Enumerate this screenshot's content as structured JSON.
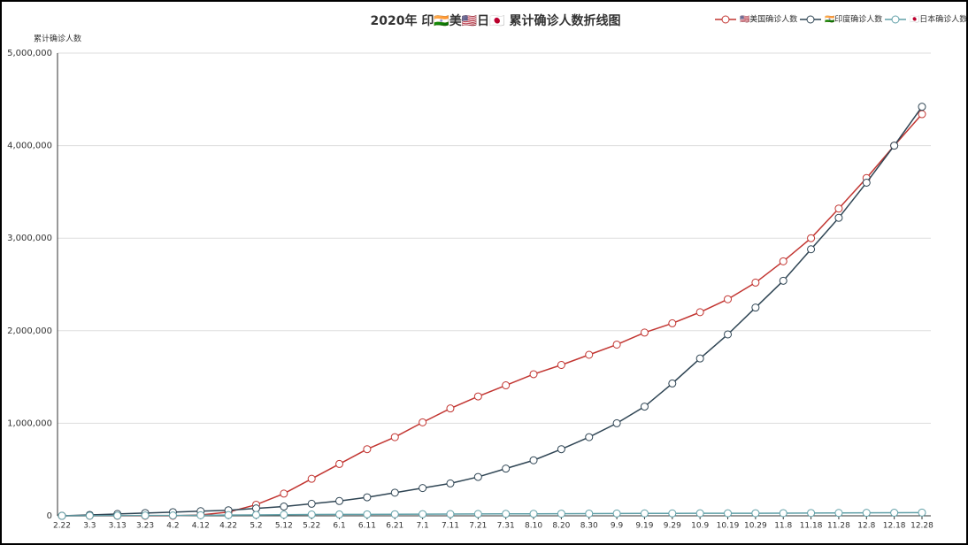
{
  "chart_data": {
    "type": "line",
    "title": "2020年 印🇮🇳美🇺🇸日🇯🇵 累计确诊人数折线图",
    "y_label": "累计确诊人数",
    "categories": [
      "2.22",
      "3.3",
      "3.13",
      "3.23",
      "4.2",
      "4.12",
      "4.22",
      "5.2",
      "5.12",
      "5.22",
      "6.1",
      "6.11",
      "6.21",
      "7.1",
      "7.11",
      "7.21",
      "7.31",
      "8.10",
      "8.20",
      "8.30",
      "9.9",
      "9.19",
      "9.29",
      "10.9",
      "10.19",
      "10.29",
      "11.8",
      "11.18",
      "11.28",
      "12.8",
      "12.18",
      "12.28"
    ],
    "series": [
      {
        "name": "🇺🇸美国确诊人数",
        "color": "#c23531",
        "values": [
          0,
          0,
          0,
          0,
          0,
          10000,
          40000,
          120000,
          240000,
          400000,
          560000,
          720000,
          850000,
          1010000,
          1160000,
          1290000,
          1410000,
          1530000,
          1630000,
          1740000,
          1850000,
          1980000,
          2080000,
          2200000,
          2340000,
          2520000,
          2750000,
          3000000,
          3320000,
          3650000,
          4000000,
          4340000
        ]
      },
      {
        "name": "🇮🇳印度确诊人数",
        "color": "#2f4554",
        "values": [
          0,
          10000,
          20000,
          30000,
          40000,
          50000,
          60000,
          80000,
          100000,
          130000,
          160000,
          200000,
          250000,
          300000,
          350000,
          420000,
          510000,
          600000,
          720000,
          850000,
          1000000,
          1180000,
          1430000,
          1700000,
          1960000,
          2250000,
          2540000,
          2880000,
          3220000,
          3600000,
          4000000,
          4420000
        ]
      },
      {
        "name": "🇯🇵日本确诊人数",
        "color": "#61a0a8",
        "values": [
          0,
          1000,
          2000,
          3000,
          4000,
          6000,
          8000,
          10000,
          12000,
          14000,
          15000,
          16000,
          17000,
          18000,
          19000,
          20000,
          21000,
          22000,
          23000,
          24000,
          25000,
          26000,
          26000,
          27000,
          27000,
          28000,
          29000,
          30000,
          31000,
          32000,
          33000,
          35000
        ]
      }
    ],
    "ylim": [
      0,
      5000000
    ],
    "yticks": [
      0,
      {
        "value": 1000000,
        "label": "1,000,000"
      },
      {
        "value": 2000000,
        "label": "2,000,000"
      },
      {
        "value": 3000000,
        "label": "3,000,000"
      },
      {
        "value": 4000000,
        "label": "4,000,000"
      },
      {
        "value": 5000000,
        "label": "5,000,000"
      }
    ],
    "grid": true
  }
}
